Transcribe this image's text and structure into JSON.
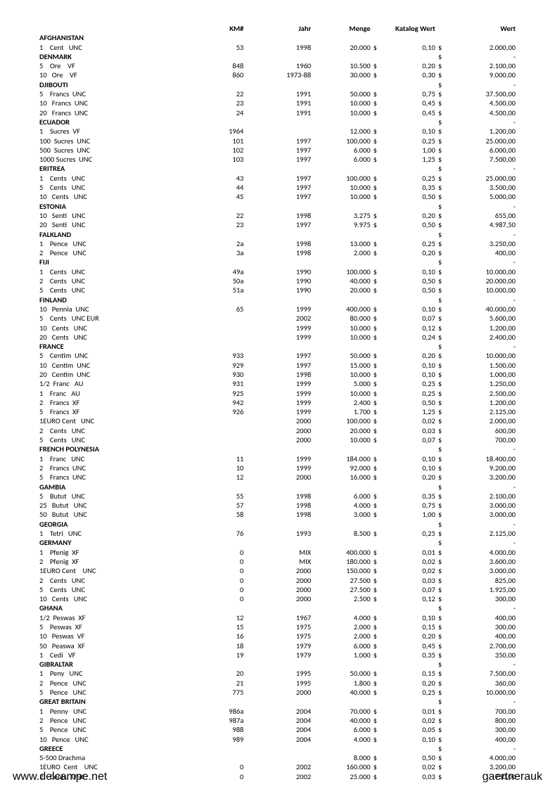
{
  "headers": {
    "km": "KM#",
    "jahr": "Jahr",
    "menge": "Menge",
    "katalog": "Katalog Wert",
    "wert": "Wert"
  },
  "footer": {
    "left": "www.delcampe.net",
    "right": "gaertnerauk"
  },
  "rows": [
    {
      "t": "c",
      "desc": "AFGHANISTAN"
    },
    {
      "t": "d",
      "desc": "1    Cent   UNC",
      "km": "53",
      "jahr": "1998",
      "menge": "20.000",
      "cur1": "$",
      "kat": "0,10",
      "cur2": "$",
      "wert": "2.000,00"
    },
    {
      "t": "c",
      "desc": "DENMARK",
      "cur2": "$",
      "wert": "-"
    },
    {
      "t": "d",
      "desc": "5    Ore    VF",
      "km": "848",
      "jahr": "1960",
      "menge": "10.500",
      "cur1": "$",
      "kat": "0,20",
      "cur2": "$",
      "wert": "2.100,00"
    },
    {
      "t": "d",
      "desc": "10   Ore    VF",
      "km": "860",
      "jahr": "1973-88",
      "menge": "30.000",
      "cur1": "$",
      "kat": "0,30",
      "cur2": "$",
      "wert": "9.000,00"
    },
    {
      "t": "c",
      "desc": "DJIBOUTI",
      "cur2": "$",
      "wert": "-"
    },
    {
      "t": "d",
      "desc": "5    Francs  UNC",
      "km": "22",
      "jahr": "1991",
      "menge": "50.000",
      "cur1": "$",
      "kat": "0,75",
      "cur2": "$",
      "wert": "37.500,00"
    },
    {
      "t": "d",
      "desc": "10   Francs  UNC",
      "km": "23",
      "jahr": "1991",
      "menge": "10.000",
      "cur1": "$",
      "kat": "0,45",
      "cur2": "$",
      "wert": "4.500,00"
    },
    {
      "t": "d",
      "desc": "20   Francs  UNC",
      "km": "24",
      "jahr": "1991",
      "menge": "10.000",
      "cur1": "$",
      "kat": "0,45",
      "cur2": "$",
      "wert": "4.500,00"
    },
    {
      "t": "c",
      "desc": "ECUADOR",
      "cur2": "$",
      "wert": "-"
    },
    {
      "t": "d",
      "desc": "1    Sucres  VF",
      "km": "1964",
      "jahr": "",
      "menge": "12.000",
      "cur1": "$",
      "kat": "0,10",
      "cur2": "$",
      "wert": "1.200,00"
    },
    {
      "t": "d",
      "desc": "100  Sucres  UNC",
      "km": "101",
      "jahr": "1997",
      "menge": "100.000",
      "cur1": "$",
      "kat": "0,25",
      "cur2": "$",
      "wert": "25.000,00"
    },
    {
      "t": "d",
      "desc": "500  Sucres  UNC",
      "km": "102",
      "jahr": "1997",
      "menge": "6.000",
      "cur1": "$",
      "kat": "1,00",
      "cur2": "$",
      "wert": "6.000,00"
    },
    {
      "t": "d",
      "desc": "1000 Sucres  UNC",
      "km": "103",
      "jahr": "1997",
      "menge": "6.000",
      "cur1": "$",
      "kat": "1,25",
      "cur2": "$",
      "wert": "7.500,00"
    },
    {
      "t": "c",
      "desc": "ERITREA",
      "cur2": "$",
      "wert": "-"
    },
    {
      "t": "d",
      "desc": "1    Cents   UNC",
      "km": "43",
      "jahr": "1997",
      "menge": "100.000",
      "cur1": "$",
      "kat": "0,25",
      "cur2": "$",
      "wert": "25.000,00"
    },
    {
      "t": "d",
      "desc": "5    Cents   UNC",
      "km": "44",
      "jahr": "1997",
      "menge": "10.000",
      "cur1": "$",
      "kat": "0,35",
      "cur2": "$",
      "wert": "3.500,00"
    },
    {
      "t": "d",
      "desc": "10   Cents   UNC",
      "km": "45",
      "jahr": "1997",
      "menge": "10.000",
      "cur1": "$",
      "kat": "0,50",
      "cur2": "$",
      "wert": "5.000,00"
    },
    {
      "t": "c",
      "desc": "ESTONIA",
      "cur2": "$",
      "wert": "-"
    },
    {
      "t": "d",
      "desc": "10   Senti   UNC",
      "km": "22",
      "jahr": "1998",
      "menge": "3.275",
      "cur1": "$",
      "kat": "0,20",
      "cur2": "$",
      "wert": "655,00"
    },
    {
      "t": "d",
      "desc": "20   Senti   UNC",
      "km": "23",
      "jahr": "1997",
      "menge": "9.975",
      "cur1": "$",
      "kat": "0,50",
      "cur2": "$",
      "wert": "4.987,50"
    },
    {
      "t": "c",
      "desc": "FALKLAND",
      "cur2": "$",
      "wert": "-"
    },
    {
      "t": "d",
      "desc": "1    Pence   UNC",
      "km": "2a",
      "jahr": "1998",
      "menge": "13.000",
      "cur1": "$",
      "kat": "0,25",
      "cur2": "$",
      "wert": "3.250,00"
    },
    {
      "t": "d",
      "desc": "2    Pence   UNC",
      "km": "3a",
      "jahr": "1998",
      "menge": "2.000",
      "cur1": "$",
      "kat": "0,20",
      "cur2": "$",
      "wert": "400,00"
    },
    {
      "t": "c",
      "desc": "FIJI",
      "cur2": "$",
      "wert": "-"
    },
    {
      "t": "d",
      "desc": "1    Cents   UNC",
      "km": "49a",
      "jahr": "1990",
      "menge": "100.000",
      "cur1": "$",
      "kat": "0,10",
      "cur2": "$",
      "wert": "10.000,00"
    },
    {
      "t": "d",
      "desc": "2    Cents   UNC",
      "km": "50a",
      "jahr": "1990",
      "menge": "40.000",
      "cur1": "$",
      "kat": "0,50",
      "cur2": "$",
      "wert": "20.000,00"
    },
    {
      "t": "d",
      "desc": "5    Cents   UNC",
      "km": "51a",
      "jahr": "1990",
      "menge": "20.000",
      "cur1": "$",
      "kat": "0,50",
      "cur2": "$",
      "wert": "10.000,00"
    },
    {
      "t": "c",
      "desc": "FINLAND",
      "cur2": "$",
      "wert": "-"
    },
    {
      "t": "d",
      "desc": "10   Pennia  UNC",
      "km": "65",
      "jahr": "1999",
      "menge": "400.000",
      "cur1": "$",
      "kat": "0,10",
      "cur2": "$",
      "wert": "40.000,00"
    },
    {
      "t": "d",
      "desc": "5    Cents   UNC EUR",
      "km": "",
      "jahr": "2002",
      "menge": "80.000",
      "cur1": "$",
      "kat": "0,07",
      "cur2": "$",
      "wert": "5.600,00"
    },
    {
      "t": "d",
      "desc": "10   Cents   UNC",
      "km": "",
      "jahr": "1999",
      "menge": "10.000",
      "cur1": "$",
      "kat": "0,12",
      "cur2": "$",
      "wert": "1.200,00"
    },
    {
      "t": "d",
      "desc": "20   Cents   UNC",
      "km": "",
      "jahr": "1999",
      "menge": "10.000",
      "cur1": "$",
      "kat": "0,24",
      "cur2": "$",
      "wert": "2.400,00"
    },
    {
      "t": "c",
      "desc": "FRANCE",
      "cur2": "$",
      "wert": "-"
    },
    {
      "t": "d",
      "desc": "5    Centim  UNC",
      "km": "933",
      "jahr": "1997",
      "menge": "50.000",
      "cur1": "$",
      "kat": "0,20",
      "cur2": "$",
      "wert": "10.000,00"
    },
    {
      "t": "d",
      "desc": "10   Centim  UNC",
      "km": "929",
      "jahr": "1997",
      "menge": "15.000",
      "cur1": "$",
      "kat": "0,10",
      "cur2": "$",
      "wert": "1.500,00"
    },
    {
      "t": "d",
      "desc": "20   Centim  UNC",
      "km": "930",
      "jahr": "1998",
      "menge": "10.000",
      "cur1": "$",
      "kat": "0,10",
      "cur2": "$",
      "wert": "1.000,00"
    },
    {
      "t": "d",
      "desc": "1/2  Franc   AU",
      "km": "931",
      "jahr": "1999",
      "menge": "5.000",
      "cur1": "$",
      "kat": "0,25",
      "cur2": "$",
      "wert": "1.250,00"
    },
    {
      "t": "d",
      "desc": "1    Franc   AU",
      "km": "925",
      "jahr": "1999",
      "menge": "10.000",
      "cur1": "$",
      "kat": "0,25",
      "cur2": "$",
      "wert": "2.500,00"
    },
    {
      "t": "d",
      "desc": "2    Francs  XF",
      "km": "942",
      "jahr": "1999",
      "menge": "2.400",
      "cur1": "$",
      "kat": "0,50",
      "cur2": "$",
      "wert": "1.200,00"
    },
    {
      "t": "d",
      "desc": "5    Francs  XF",
      "km": "926",
      "jahr": "1999",
      "menge": "1.700",
      "cur1": "$",
      "kat": "1,25",
      "cur2": "$",
      "wert": "2.125,00"
    },
    {
      "t": "d",
      "desc": "1EURO Cent   UNC",
      "km": "",
      "jahr": "2000",
      "menge": "100.000",
      "cur1": "$",
      "kat": "0,02",
      "cur2": "$",
      "wert": "2.000,00"
    },
    {
      "t": "d",
      "desc": "2    Cents   UNC",
      "km": "",
      "jahr": "2000",
      "menge": "20.000",
      "cur1": "$",
      "kat": "0,03",
      "cur2": "$",
      "wert": "600,00"
    },
    {
      "t": "d",
      "desc": "5    Cents   UNC",
      "km": "",
      "jahr": "2000",
      "menge": "10.000",
      "cur1": "$",
      "kat": "0,07",
      "cur2": "$",
      "wert": "700,00"
    },
    {
      "t": "c",
      "desc": "FRENCH POLYNESIA",
      "cur2": "$",
      "wert": "-"
    },
    {
      "t": "d",
      "desc": "1    Franc   UNC",
      "km": "11",
      "jahr": "1999",
      "menge": "184.000",
      "cur1": "$",
      "kat": "0,10",
      "cur2": "$",
      "wert": "18.400,00"
    },
    {
      "t": "d",
      "desc": "2    Francs  UNC",
      "km": "10",
      "jahr": "1999",
      "menge": "92.000",
      "cur1": "$",
      "kat": "0,10",
      "cur2": "$",
      "wert": "9.200,00"
    },
    {
      "t": "d",
      "desc": "5    Francs  UNC",
      "km": "12",
      "jahr": "2000",
      "menge": "16.000",
      "cur1": "$",
      "kat": "0,20",
      "cur2": "$",
      "wert": "3.200,00"
    },
    {
      "t": "c",
      "desc": "GAMBIA",
      "cur2": "$",
      "wert": "-"
    },
    {
      "t": "d",
      "desc": "5    Butut   UNC",
      "km": "55",
      "jahr": "1998",
      "menge": "6.000",
      "cur1": "$",
      "kat": "0,35",
      "cur2": "$",
      "wert": "2.100,00"
    },
    {
      "t": "d",
      "desc": "25   Butut   UNC",
      "km": "57",
      "jahr": "1998",
      "menge": "4.000",
      "cur1": "$",
      "kat": "0,75",
      "cur2": "$",
      "wert": "3.000,00"
    },
    {
      "t": "d",
      "desc": "50   Butut   UNC",
      "km": "58",
      "jahr": "1998",
      "menge": "3.000",
      "cur1": "$",
      "kat": "1,00",
      "cur2": "$",
      "wert": "3.000,00"
    },
    {
      "t": "c",
      "desc": "GEORGIA",
      "cur2": "$",
      "wert": "-"
    },
    {
      "t": "d",
      "desc": "1    Tetri   UNC",
      "km": "76",
      "jahr": "1993",
      "menge": "8.500",
      "cur1": "$",
      "kat": "0,25",
      "cur2": "$",
      "wert": "2.125,00"
    },
    {
      "t": "c",
      "desc": "GERMANY",
      "cur2": "$",
      "wert": "-"
    },
    {
      "t": "d",
      "desc": "1    Pfenig  XF",
      "km": "0",
      "jahr": "MIX",
      "menge": "400.000",
      "cur1": "$",
      "kat": "0,01",
      "cur2": "$",
      "wert": "4.000,00"
    },
    {
      "t": "d",
      "desc": "2    Pfenig  XF",
      "km": "0",
      "jahr": "MIX",
      "menge": "180.000",
      "cur1": "$",
      "kat": "0,02",
      "cur2": "$",
      "wert": "3.600,00"
    },
    {
      "t": "d",
      "desc": "1EURO Cent    UNC",
      "km": "0",
      "jahr": "2000",
      "menge": "150.000",
      "cur1": "$",
      "kat": "0,02",
      "cur2": "$",
      "wert": "3.000,00"
    },
    {
      "t": "d",
      "desc": "2    Cents   UNC",
      "km": "0",
      "jahr": "2000",
      "menge": "27.500",
      "cur1": "$",
      "kat": "0,03",
      "cur2": "$",
      "wert": "825,00"
    },
    {
      "t": "d",
      "desc": "5    Cents   UNC",
      "km": "0",
      "jahr": "2000",
      "menge": "27.500",
      "cur1": "$",
      "kat": "0,07",
      "cur2": "$",
      "wert": "1.925,00"
    },
    {
      "t": "d",
      "desc": "10   Cents   UNC",
      "km": "0",
      "jahr": "2000",
      "menge": "2.500",
      "cur1": "$",
      "kat": "0,12",
      "cur2": "$",
      "wert": "300,00"
    },
    {
      "t": "c",
      "desc": "GHANA",
      "cur2": "$",
      "wert": "-"
    },
    {
      "t": "d",
      "desc": "1/2  Peswas  XF",
      "km": "12",
      "jahr": "1967",
      "menge": "4.000",
      "cur1": "$",
      "kat": "0,10",
      "cur2": "$",
      "wert": "400,00"
    },
    {
      "t": "d",
      "desc": "5    Peswas  XF",
      "km": "15",
      "jahr": "1975",
      "menge": "2.000",
      "cur1": "$",
      "kat": "0,15",
      "cur2": "$",
      "wert": "300,00"
    },
    {
      "t": "d",
      "desc": "10   Peswas  VF",
      "km": "16",
      "jahr": "1975",
      "menge": "2.000",
      "cur1": "$",
      "kat": "0,20",
      "cur2": "$",
      "wert": "400,00"
    },
    {
      "t": "d",
      "desc": "50   Peaswa  XF",
      "km": "18",
      "jahr": "1979",
      "menge": "6.000",
      "cur1": "$",
      "kat": "0,45",
      "cur2": "$",
      "wert": "2.700,00"
    },
    {
      "t": "d",
      "desc": "1    Cedi   VF",
      "km": "19",
      "jahr": "1979",
      "menge": "1.000",
      "cur1": "$",
      "kat": "0,35",
      "cur2": "$",
      "wert": "350,00"
    },
    {
      "t": "c",
      "desc": "GIBRALTAR",
      "cur2": "$",
      "wert": "-"
    },
    {
      "t": "d",
      "desc": "1    Peny   UNC",
      "km": "20",
      "jahr": "1995",
      "menge": "50.000",
      "cur1": "$",
      "kat": "0,15",
      "cur2": "$",
      "wert": "7.500,00"
    },
    {
      "t": "d",
      "desc": "2    Pence   UNC",
      "km": "21",
      "jahr": "1995",
      "menge": "1.800",
      "cur1": "$",
      "kat": "0,20",
      "cur2": "$",
      "wert": "360,00"
    },
    {
      "t": "d",
      "desc": "5    Pence   UNC",
      "km": "775",
      "jahr": "2000",
      "menge": "40.000",
      "cur1": "$",
      "kat": "0,25",
      "cur2": "$",
      "wert": "10.000,00"
    },
    {
      "t": "c",
      "desc": "GREAT BRITAIN",
      "cur2": "$",
      "wert": "-"
    },
    {
      "t": "d",
      "desc": "1    Penny   UNC",
      "km": "986a",
      "jahr": "2004",
      "menge": "70.000",
      "cur1": "$",
      "kat": "0,01",
      "cur2": "$",
      "wert": "700,00"
    },
    {
      "t": "d",
      "desc": "2    Pence   UNC",
      "km": "987a",
      "jahr": "2004",
      "menge": "40.000",
      "cur1": "$",
      "kat": "0,02",
      "cur2": "$",
      "wert": "800,00"
    },
    {
      "t": "d",
      "desc": "5    Pence   UNC",
      "km": "988",
      "jahr": "2004",
      "menge": "6.000",
      "cur1": "$",
      "kat": "0,05",
      "cur2": "$",
      "wert": "300,00"
    },
    {
      "t": "d",
      "desc": "10   Pence   UNC",
      "km": "989",
      "jahr": "2004",
      "menge": "4.000",
      "cur1": "$",
      "kat": "0,10",
      "cur2": "$",
      "wert": "400,00"
    },
    {
      "t": "c",
      "desc": "GREECE",
      "cur2": "$",
      "wert": "-"
    },
    {
      "t": "d",
      "desc": "5-500 Drachma",
      "km": "",
      "jahr": "",
      "menge": "8.000",
      "cur1": "$",
      "kat": "0,50",
      "cur2": "$",
      "wert": "4.000,00"
    },
    {
      "t": "d",
      "desc": "1EURO  Cent    UNC",
      "km": "0",
      "jahr": "2002",
      "menge": "160.000",
      "cur1": "$",
      "kat": "0,02",
      "cur2": "$",
      "wert": "3.200,00"
    },
    {
      "t": "d",
      "desc": "2    Cents   UNC",
      "km": "0",
      "jahr": "2002",
      "menge": "25.000",
      "cur1": "$",
      "kat": "0,03",
      "cur2": "$",
      "wert": "750,00"
    }
  ]
}
